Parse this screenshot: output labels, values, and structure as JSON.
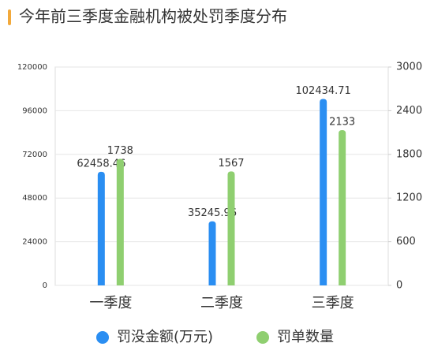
{
  "chart_data": {
    "type": "bar",
    "title": "今年前三季度金融机构被处罚季度分布",
    "categories": [
      "一季度",
      "二季度",
      "三季度"
    ],
    "series": [
      {
        "name": "罚没金额(万元)",
        "color": "#2a8ef2",
        "values": [
          62458.46,
          35245.96,
          102434.71
        ]
      },
      {
        "name": "罚单数量",
        "color": "#8fcf70",
        "values": [
          1738,
          1567,
          2133
        ],
        "axis": "y2"
      }
    ],
    "ylim": [
      0,
      120000
    ],
    "yticks": [
      0,
      24000,
      48000,
      72000,
      96000,
      120000
    ],
    "y2lim": [
      0,
      3000
    ],
    "y2ticks": [
      0,
      600,
      1200,
      1800,
      2400,
      3000
    ],
    "grid": true
  }
}
